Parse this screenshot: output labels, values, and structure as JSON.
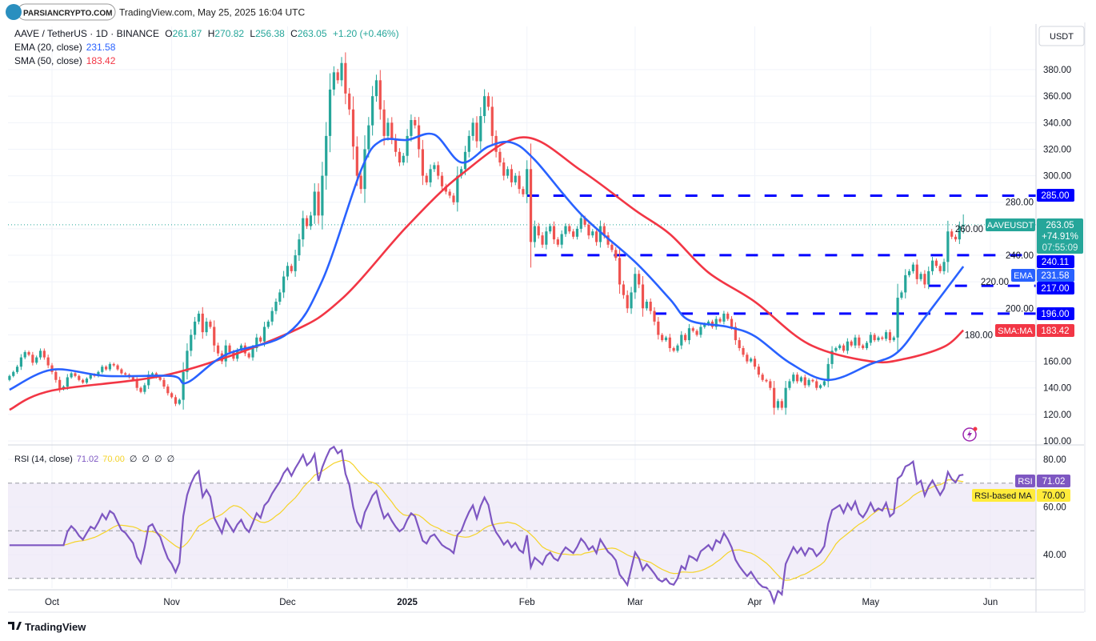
{
  "header": {
    "logo_text": "PARSIANCRYPTO.COM",
    "source": "TradingView.com, May 25, 2025 16:04 UTC"
  },
  "legend": {
    "symbol": "AAVE / TetherUS · 1D · BINANCE",
    "o_label": "O",
    "o": "261.87",
    "h_label": "H",
    "h": "270.82",
    "l_label": "L",
    "l": "256.38",
    "c_label": "C",
    "c": "263.05",
    "change": "+1.20 (+0.46%)",
    "ema_label": "EMA (20, close)",
    "ema_value": "231.58",
    "sma_label": "SMA (50, close)",
    "sma_value": "183.42",
    "rsi_label": "RSI (14, close)",
    "rsi_value": "71.02",
    "rsi_ma_value": "70.00",
    "rsi_extra": [
      "∅",
      "∅",
      "∅",
      "∅"
    ]
  },
  "currency": "USDT",
  "tags": {
    "symbol": "AAVEUSDT",
    "price": "263.05",
    "pct": "+74.91%",
    "countdown": "07:55:09",
    "l285": "285.00",
    "l240": "240.11",
    "ema_name": "EMA",
    "ema": "231.58",
    "l217": "217.00",
    "l196": "196.00",
    "sma_name": "SMA:MA",
    "sma": "183.42",
    "rsi_name": "RSI",
    "rsi": "71.02",
    "rsi_ma_name": "RSI-based MA",
    "rsi_ma": "70.00"
  },
  "footer": {
    "brand": "TradingView"
  },
  "colors": {
    "up": "#26a69a",
    "down": "#ef5350",
    "ema": "#2962ff",
    "sma": "#f23645",
    "level": "#0000ff",
    "rsi": "#7e57c2",
    "rsi_ma": "#f5d328",
    "rsi_band": "#ede7f6"
  },
  "chart_data": [
    {
      "type": "candlestick",
      "title": "AAVE / TetherUS · 1D · BINANCE",
      "y_axis": {
        "min": 100,
        "max": 390,
        "ticks": [
          "100.00",
          "120.00",
          "140.00",
          "160.00",
          "180.00",
          "200.00",
          "220.00",
          "240.00",
          "260.00",
          "280.00",
          "300.00",
          "320.00",
          "340.00",
          "360.00",
          "380.00"
        ]
      },
      "x_axis": {
        "ticks": [
          {
            "label": "Oct",
            "date": "2024-10-01"
          },
          {
            "label": "Nov",
            "date": "2024-11-01"
          },
          {
            "label": "Dec",
            "date": "2024-12-01"
          },
          {
            "label": "2025",
            "date": "2025-01-01",
            "bold": true
          },
          {
            "label": "Feb",
            "date": "2025-02-01"
          },
          {
            "label": "Mar",
            "date": "2025-03-01"
          },
          {
            "label": "Apr",
            "date": "2025-04-01"
          },
          {
            "label": "May",
            "date": "2025-05-01"
          },
          {
            "label": "Jun",
            "date": "2025-06-01"
          }
        ]
      },
      "closes_by_month": [
        {
          "month": "2024-09",
          "first_day": 20,
          "close": [
            149,
            152,
            156,
            163,
            167,
            165,
            159,
            163,
            168,
            163,
            157
          ]
        },
        {
          "month": "2024-10",
          "first_day": 1,
          "close": [
            152,
            146,
            139,
            141,
            148,
            151,
            149,
            146,
            144,
            147,
            150,
            149,
            152,
            156,
            154,
            158,
            157,
            154,
            151,
            150,
            148,
            146,
            140,
            137,
            142,
            150,
            151,
            148,
            146,
            141,
            136
          ]
        },
        {
          "month": "2024-11",
          "first_day": 1,
          "close": [
            133,
            128,
            131,
            152,
            168,
            180,
            190,
            196,
            182,
            190,
            186,
            172,
            166,
            160,
            172,
            167,
            162,
            168,
            172,
            166,
            163,
            170,
            178,
            175,
            186,
            190,
            198,
            205,
            212,
            224
          ]
        },
        {
          "month": "2024-12",
          "first_day": 1,
          "close": [
            232,
            228,
            240,
            252,
            268,
            262,
            270,
            288,
            270,
            300,
            330,
            365,
            378,
            372,
            385,
            362,
            350,
            322,
            300,
            290,
            320,
            338,
            360,
            372,
            350,
            330,
            340,
            328,
            318,
            310,
            315
          ]
        },
        {
          "month": "2025-01",
          "first_day": 1,
          "close": [
            330,
            342,
            338,
            320,
            300,
            295,
            305,
            308,
            300,
            292,
            288,
            285,
            280,
            300,
            305,
            318,
            330,
            340,
            326,
            345,
            360,
            352,
            330,
            318,
            310,
            300,
            305,
            295,
            300,
            290,
            286
          ]
        },
        {
          "month": "2025-02",
          "first_day": 1,
          "close": [
            305,
            250,
            262,
            255,
            248,
            258,
            262,
            252,
            248,
            256,
            262,
            258,
            254,
            260,
            268,
            263,
            255,
            258,
            250,
            262,
            255,
            248,
            244,
            238,
            218,
            210,
            200,
            212
          ]
        },
        {
          "month": "2025-03",
          "first_day": 1,
          "close": [
            226,
            218,
            200,
            205,
            198,
            190,
            180,
            176,
            178,
            170,
            168,
            172,
            180,
            176,
            185,
            183,
            180,
            186,
            188,
            190,
            186,
            192,
            190,
            196,
            192,
            186,
            176,
            170,
            165,
            160,
            162
          ]
        },
        {
          "month": "2025-04",
          "first_day": 1,
          "close": [
            156,
            150,
            146,
            145,
            140,
            125,
            130,
            125,
            140,
            145,
            150,
            145,
            148,
            142,
            146,
            145,
            140,
            142,
            145,
            158,
            168,
            170,
            172,
            168,
            175,
            172,
            178,
            172,
            170,
            174
          ]
        },
        {
          "month": "2025-05",
          "first_day": 1,
          "close": [
            180,
            176,
            178,
            177,
            182,
            176,
            178,
            208,
            212,
            225,
            228,
            233,
            222,
            226,
            218,
            228,
            236,
            232,
            228,
            235,
            258,
            254,
            252,
            262,
            263.05
          ]
        }
      ],
      "last": {
        "open": 261.87,
        "high": 270.82,
        "low": 256.38,
        "close": 263.05
      },
      "ema20": [
        [
          "2024-09-20",
          138.6
        ],
        [
          "2024-10-01",
          153.7
        ],
        [
          "2024-10-15",
          149
        ],
        [
          "2024-11-01",
          149
        ],
        [
          "2024-11-05",
          144
        ],
        [
          "2024-11-15",
          165
        ],
        [
          "2024-12-01",
          181
        ],
        [
          "2024-12-10",
          221
        ],
        [
          "2024-12-20",
          304
        ],
        [
          "2024-12-25",
          326
        ],
        [
          "2025-01-01",
          327
        ],
        [
          "2025-01-08",
          331
        ],
        [
          "2025-01-15",
          310
        ],
        [
          "2025-01-22",
          322
        ],
        [
          "2025-01-28",
          325
        ],
        [
          "2025-02-03",
          312
        ],
        [
          "2025-02-15",
          271
        ],
        [
          "2025-03-01",
          235
        ],
        [
          "2025-03-10",
          207
        ],
        [
          "2025-03-15",
          191
        ],
        [
          "2025-03-25",
          186
        ],
        [
          "2025-04-01",
          179
        ],
        [
          "2025-04-10",
          159
        ],
        [
          "2025-04-20",
          146
        ],
        [
          "2025-05-01",
          158
        ],
        [
          "2025-05-08",
          167
        ],
        [
          "2025-05-15",
          193
        ],
        [
          "2025-05-25",
          231.58
        ]
      ],
      "sma50": [
        [
          "2024-09-20",
          123.5
        ],
        [
          "2024-10-01",
          138
        ],
        [
          "2024-11-01",
          150.7
        ],
        [
          "2024-12-01",
          181
        ],
        [
          "2024-12-15",
          207
        ],
        [
          "2025-01-01",
          262
        ],
        [
          "2025-01-15",
          301
        ],
        [
          "2025-01-31",
          329
        ],
        [
          "2025-02-15",
          304
        ],
        [
          "2025-03-01",
          274
        ],
        [
          "2025-03-10",
          256
        ],
        [
          "2025-03-20",
          227
        ],
        [
          "2025-04-01",
          205
        ],
        [
          "2025-04-15",
          173
        ],
        [
          "2025-05-01",
          160
        ],
        [
          "2025-05-10",
          162
        ],
        [
          "2025-05-20",
          171
        ],
        [
          "2025-05-25",
          183.42
        ]
      ],
      "levels": [
        {
          "price": 285.0,
          "from": "2025-02-01"
        },
        {
          "price": 240.11,
          "from": "2025-02-03"
        },
        {
          "price": 217.0,
          "from": "2025-05-16"
        },
        {
          "price": 196.0,
          "from": "2025-03-06"
        }
      ]
    },
    {
      "type": "line",
      "title": "RSI (14, close)",
      "y_axis": {
        "min": 25,
        "max": 85,
        "ticks": [
          "40.00",
          "60.00",
          "80.00"
        ]
      },
      "band": [
        30,
        70
      ],
      "midline": 50,
      "series": [
        {
          "name": "RSI",
          "period": 14
        },
        {
          "name": "RSI-based MA",
          "period": 14
        }
      ]
    }
  ]
}
